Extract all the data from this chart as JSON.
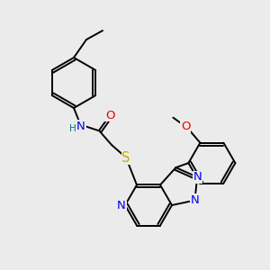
{
  "background_color": "#ebebeb",
  "atom_colors": {
    "C": "#000000",
    "N": "#0000ee",
    "O": "#ee0000",
    "S": "#ccaa00",
    "H": "#007777"
  },
  "bond_color": "#000000",
  "figsize": [
    3.0,
    3.0
  ],
  "dpi": 100,
  "lw": 1.4,
  "fs": 8.5
}
